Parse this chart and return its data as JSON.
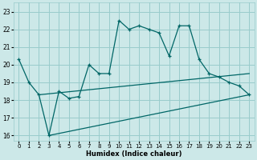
{
  "xlabel": "Humidex (Indice chaleur)",
  "x_ticks": [
    0,
    1,
    2,
    3,
    4,
    5,
    6,
    7,
    8,
    9,
    10,
    11,
    12,
    13,
    14,
    15,
    16,
    17,
    18,
    19,
    20,
    21,
    22,
    23
  ],
  "ylim": [
    15.7,
    23.5
  ],
  "xlim": [
    -0.5,
    23.5
  ],
  "yticks": [
    16,
    17,
    18,
    19,
    20,
    21,
    22,
    23
  ],
  "bg_color": "#cce8e8",
  "grid_color": "#99cccc",
  "line_color": "#006666",
  "main_line": [
    20.3,
    19.0,
    18.3,
    16.0,
    18.5,
    18.1,
    18.2,
    20.0,
    19.5,
    19.5,
    22.5,
    22.0,
    22.2,
    22.0,
    21.8,
    20.5,
    22.2,
    22.2,
    20.3,
    19.5,
    19.3,
    19.0,
    18.8,
    18.3
  ],
  "upper_line_x": [
    2,
    23
  ],
  "upper_line_y": [
    18.3,
    19.5
  ],
  "lower_line_x": [
    3,
    23
  ],
  "lower_line_y": [
    16.0,
    18.3
  ]
}
